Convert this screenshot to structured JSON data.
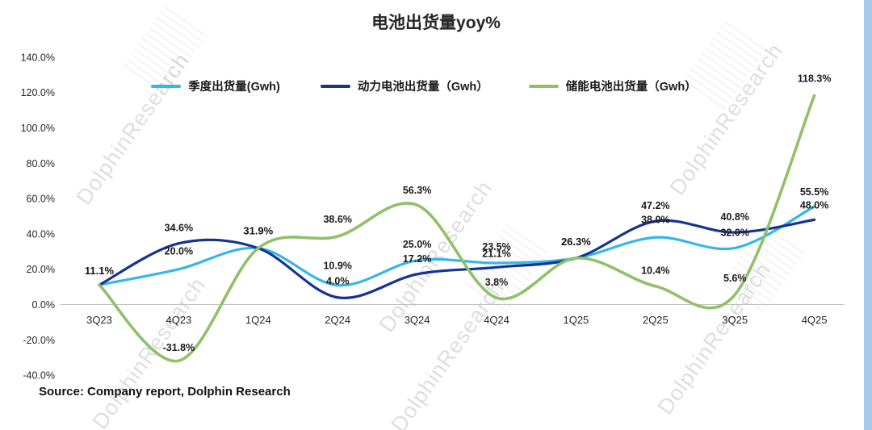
{
  "page": {
    "title": "电池出货量yoy%",
    "source_note": "Source: Company report, Dolphin Research",
    "watermark_text": "DolphinResearch",
    "colors": {
      "edge_strip": "#A9C9E8",
      "watermark": "#D9D9D9",
      "axis_line": "#BFBFBF",
      "label_text": "#1A1A1A"
    }
  },
  "chart_data": {
    "type": "line",
    "title": "电池出货量yoy%",
    "smooth": true,
    "grid": false,
    "legend_position": "top",
    "xlabel": "",
    "ylabel": "",
    "ylim": [
      -40,
      140
    ],
    "ytick_step": 20,
    "ytick_labels": [
      "140.0%",
      "120.0%",
      "100.0%",
      "80.0%",
      "60.0%",
      "40.0%",
      "20.0%",
      "0.0%",
      "-20.0%",
      "-40.0%"
    ],
    "categories": [
      "3Q23",
      "4Q23",
      "1Q24",
      "2Q24",
      "3Q24",
      "4Q24",
      "1Q25",
      "2Q25",
      "3Q25",
      "4Q25"
    ],
    "series": [
      {
        "name": "季度出货量(Gwh)",
        "color": "#35B6E9",
        "values": [
          11.1,
          20.0,
          31.9,
          10.9,
          25.0,
          23.5,
          26.3,
          38.0,
          32.0,
          55.5
        ]
      },
      {
        "name": "动力电池出货量（Gwh）",
        "color": "#16338F",
        "values": [
          11.1,
          34.6,
          31.9,
          4.0,
          17.2,
          21.1,
          26.3,
          47.2,
          40.8,
          48.0
        ]
      },
      {
        "name": "储能电池出货量（Gwh）",
        "color": "#90C06A",
        "values": [
          11.1,
          -31.8,
          31.9,
          38.6,
          56.3,
          3.8,
          26.3,
          10.4,
          5.6,
          118.3
        ]
      }
    ],
    "shared_label_indices": [
      0,
      2,
      6
    ]
  }
}
